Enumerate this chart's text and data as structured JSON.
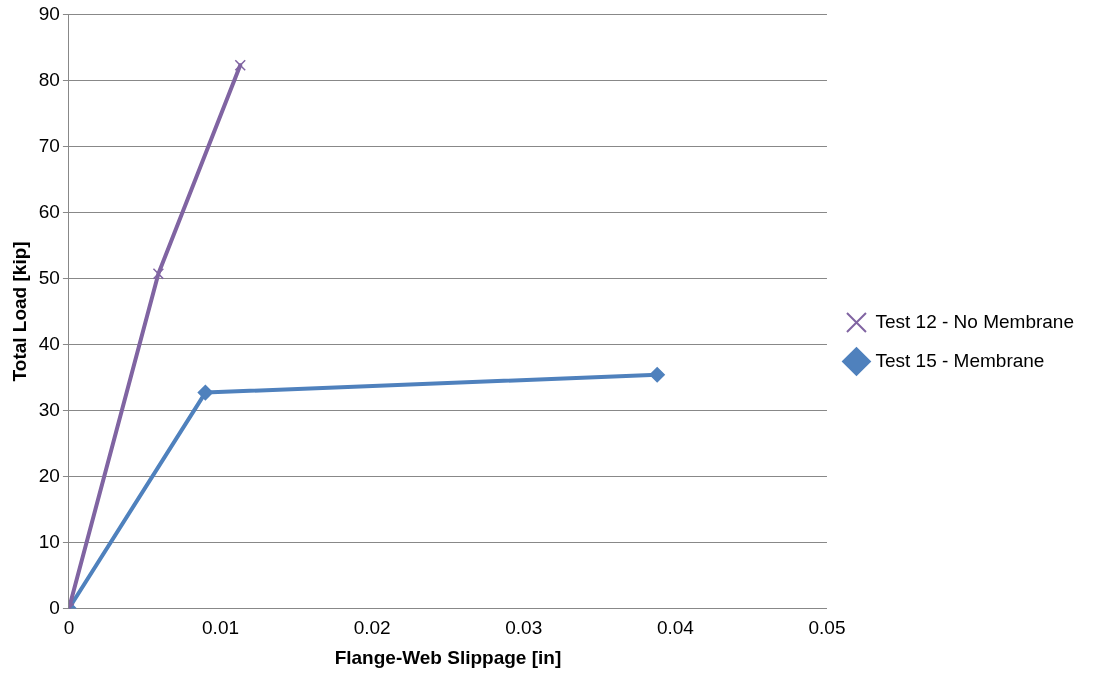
{
  "chart_data": {
    "type": "line",
    "xlabel": "Flange-Web Slippage [in]",
    "ylabel": "Total Load [kip]",
    "xlim": [
      0,
      0.05
    ],
    "xticks": [
      0,
      0.01,
      0.02,
      0.03,
      0.04,
      0.05
    ],
    "ylim": [
      0,
      90
    ],
    "yticks": [
      0,
      10,
      20,
      30,
      40,
      50,
      60,
      70,
      80,
      90
    ],
    "grid": "y",
    "legend": "right",
    "series": [
      {
        "name": "Test 12 - No Membrane",
        "color": "#8064a2",
        "marker": "cross",
        "x": [
          0,
          0.0059,
          0.0113
        ],
        "values": [
          0,
          50.7,
          82.3
        ]
      },
      {
        "name": "Test 15 - Membrane",
        "color": "#4f81bd",
        "marker": "diamond",
        "x": [
          0,
          0.009,
          0.0388
        ],
        "values": [
          0,
          32.7,
          35.4
        ]
      }
    ]
  }
}
